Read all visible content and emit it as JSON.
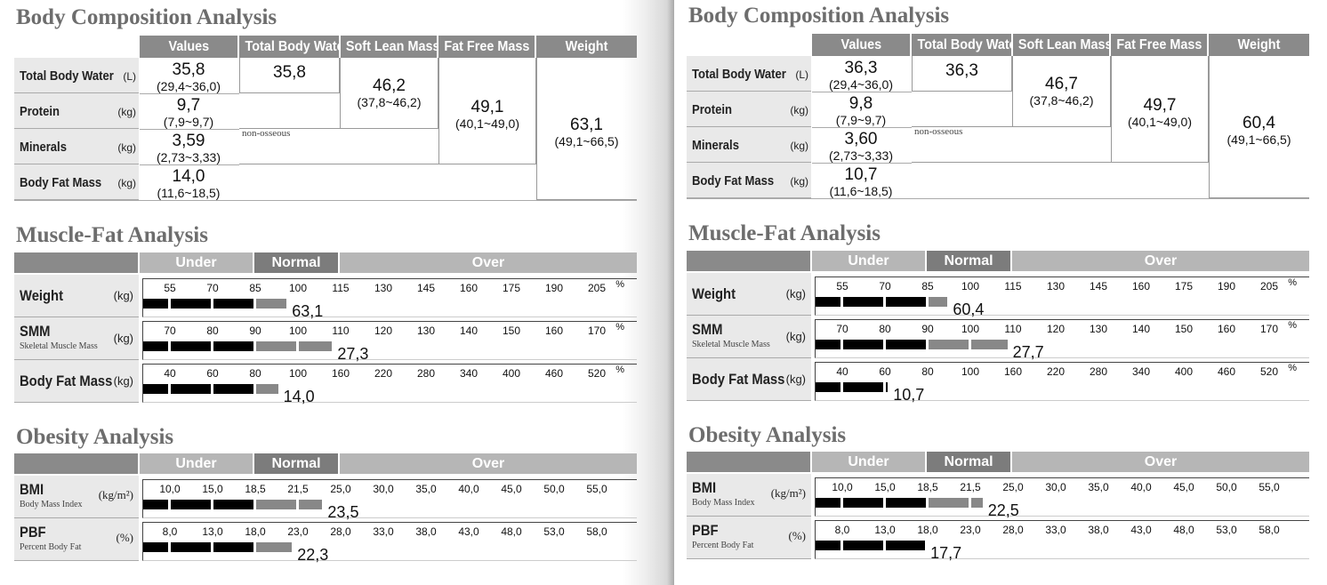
{
  "pages": [
    {
      "headings": {
        "body_composition": "Body Composition Analysis",
        "muscle_fat": "Muscle-Fat Analysis",
        "obesity": "Obesity Analysis"
      },
      "body_composition": {
        "columns": [
          "Values",
          "Total Body Water",
          "Soft Lean Mass",
          "Fat Free Mass",
          "Weight"
        ],
        "rows": [
          {
            "name": "Total Body Water",
            "unit": "(L)",
            "value": "35,8",
            "range": "(29,4~36,0)"
          },
          {
            "name": "Protein",
            "unit": "(kg)",
            "value": "9,7",
            "range": "(7,9~9,7)"
          },
          {
            "name": "Minerals",
            "unit": "(kg)",
            "value": "3,59",
            "range": "(2,73~3,33)"
          },
          {
            "name": "Body Fat Mass",
            "unit": "(kg)",
            "value": "14,0",
            "range": "(11,6~18,5)"
          }
        ],
        "total_body_water": "35,8",
        "soft_lean_mass": {
          "value": "46,2",
          "range": "(37,8~46,2)"
        },
        "fat_free_mass": {
          "value": "49,1",
          "range": "(40,1~49,0)"
        },
        "weight": {
          "value": "63,1",
          "range": "(49,1~66,5)"
        },
        "non_osseous": "non-osseous"
      },
      "muscle_fat": {
        "bands": [
          "Under",
          "Normal",
          "Over"
        ],
        "rows": [
          {
            "name": "Weight",
            "subtitle": "",
            "unit": "(kg)",
            "ticks": [
              "55",
              "70",
              "85",
              "100",
              "115",
              "130",
              "145",
              "160",
              "175",
              "190",
              "205"
            ],
            "value": "63,1",
            "fill_percent": 96
          },
          {
            "name": "SMM",
            "subtitle": "Skeletal Muscle Mass",
            "unit": "(kg)",
            "ticks": [
              "70",
              "80",
              "90",
              "100",
              "110",
              "120",
              "130",
              "140",
              "150",
              "160",
              "170"
            ],
            "value": "27,3",
            "fill_percent": 112
          },
          {
            "name": "Body Fat Mass",
            "subtitle": "",
            "unit": "(kg)",
            "ticks": [
              "40",
              "60",
              "80",
              "100",
              "160",
              "220",
              "280",
              "340",
              "400",
              "460",
              "520"
            ],
            "value": "14,0",
            "fill_percent": 93
          }
        ]
      },
      "obesity": {
        "bands": [
          "Under",
          "Normal",
          "Over"
        ],
        "rows": [
          {
            "name": "BMI",
            "subtitle": "Body Mass Index",
            "unit": "(kg/m²)",
            "ticks": [
              "10,0",
              "15,0",
              "18,5",
              "21,5",
              "25,0",
              "30,0",
              "35,0",
              "40,0",
              "45,0",
              "50,0",
              "55,0"
            ],
            "value": "23,5",
            "fill_value": 23.5
          },
          {
            "name": "PBF",
            "subtitle": "Percent Body Fat",
            "unit": "(%)",
            "ticks": [
              "8,0",
              "13,0",
              "18,0",
              "23,0",
              "28,0",
              "33,0",
              "38,0",
              "43,0",
              "48,0",
              "53,0",
              "58,0"
            ],
            "value": "22,3",
            "fill_value": 22.3
          }
        ]
      }
    },
    {
      "headings": {
        "body_composition": "Body Composition Analysis",
        "muscle_fat": "Muscle-Fat Analysis",
        "obesity": "Obesity Analysis"
      },
      "body_composition": {
        "columns": [
          "Values",
          "Total Body Water",
          "Soft Lean Mass",
          "Fat Free Mass",
          "Weight"
        ],
        "rows": [
          {
            "name": "Total Body Water",
            "unit": "(L)",
            "value": "36,3",
            "range": "(29,4~36,0)"
          },
          {
            "name": "Protein",
            "unit": "(kg)",
            "value": "9,8",
            "range": "(7,9~9,7)"
          },
          {
            "name": "Minerals",
            "unit": "(kg)",
            "value": "3,60",
            "range": "(2,73~3,33)"
          },
          {
            "name": "Body Fat Mass",
            "unit": "(kg)",
            "value": "10,7",
            "range": "(11,6~18,5)"
          }
        ],
        "total_body_water": "36,3",
        "soft_lean_mass": {
          "value": "46,7",
          "range": "(37,8~46,2)"
        },
        "fat_free_mass": {
          "value": "49,7",
          "range": "(40,1~49,0)"
        },
        "weight": {
          "value": "60,4",
          "range": "(49,1~66,5)"
        },
        "non_osseous": "non-osseous"
      },
      "muscle_fat": {
        "bands": [
          "Under",
          "Normal",
          "Over"
        ],
        "rows": [
          {
            "name": "Weight",
            "subtitle": "",
            "unit": "(kg)",
            "ticks": [
              "55",
              "70",
              "85",
              "100",
              "115",
              "130",
              "145",
              "160",
              "175",
              "190",
              "205"
            ],
            "value": "60,4",
            "fill_percent": 92
          },
          {
            "name": "SMM",
            "subtitle": "Skeletal Muscle Mass",
            "unit": "(kg)",
            "ticks": [
              "70",
              "80",
              "90",
              "100",
              "110",
              "120",
              "130",
              "140",
              "150",
              "160",
              "170"
            ],
            "value": "27,7",
            "fill_percent": 113
          },
          {
            "name": "Body Fat Mass",
            "subtitle": "",
            "unit": "(kg)",
            "ticks": [
              "40",
              "60",
              "80",
              "100",
              "160",
              "220",
              "280",
              "340",
              "400",
              "460",
              "520"
            ],
            "value": "10,7",
            "fill_percent": 71
          }
        ]
      },
      "obesity": {
        "bands": [
          "Under",
          "Normal",
          "Over"
        ],
        "rows": [
          {
            "name": "BMI",
            "subtitle": "Body Mass Index",
            "unit": "(kg/m²)",
            "ticks": [
              "10,0",
              "15,0",
              "18,5",
              "21,5",
              "25,0",
              "30,0",
              "35,0",
              "40,0",
              "45,0",
              "50,0",
              "55,0"
            ],
            "value": "22,5",
            "fill_value": 22.5
          },
          {
            "name": "PBF",
            "subtitle": "Percent Body Fat",
            "unit": "(%)",
            "ticks": [
              "8,0",
              "13,0",
              "18,0",
              "23,0",
              "28,0",
              "33,0",
              "38,0",
              "43,0",
              "48,0",
              "53,0",
              "58,0"
            ],
            "value": "17,7",
            "fill_value": 17.7
          }
        ]
      }
    }
  ]
}
